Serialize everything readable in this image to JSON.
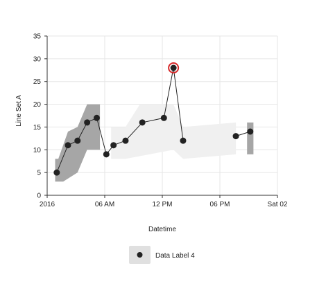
{
  "chart_data": {
    "type": "line",
    "ylabel": "Line Set A",
    "xlabel": "Datetime",
    "ylim": [
      0,
      35
    ],
    "yticks": [
      0,
      5,
      10,
      15,
      20,
      25,
      30,
      35
    ],
    "xlim": [
      "2016-01-01T00:00",
      "2016-01-02T00:00"
    ],
    "xticks": [
      {
        "x": "2016-01-01T00:00",
        "label": "2016"
      },
      {
        "x": "2016-01-01T06:00",
        "label": "06 AM"
      },
      {
        "x": "2016-01-01T12:00",
        "label": "12 PM"
      },
      {
        "x": "2016-01-01T18:00",
        "label": "06 PM"
      },
      {
        "x": "2016-01-02T00:00",
        "label": "Sat 02"
      }
    ],
    "grid": true,
    "legend_placement": "bottom-center",
    "series": [
      {
        "name": "Data Label 4",
        "color": "#222222",
        "highlight_color": "#d62728",
        "points": [
          {
            "x": "2016-01-01T01:00",
            "y": 5
          },
          {
            "x": "2016-01-01T02:10",
            "y": 11
          },
          {
            "x": "2016-01-01T03:10",
            "y": 12
          },
          {
            "x": "2016-01-01T04:10",
            "y": 16
          },
          {
            "x": "2016-01-01T05:10",
            "y": 17
          },
          {
            "x": "2016-01-01T06:10",
            "y": 9
          },
          {
            "x": "2016-01-01T06:55",
            "y": 11
          },
          {
            "x": "2016-01-01T08:10",
            "y": 12
          },
          {
            "x": "2016-01-01T09:55",
            "y": 16
          },
          {
            "x": "2016-01-01T12:10",
            "y": 17
          },
          {
            "x": "2016-01-01T13:10",
            "y": 28,
            "highlighted": true
          },
          {
            "x": "2016-01-01T14:10",
            "y": 12
          },
          {
            "x": "2016-01-01T19:40",
            "y": 13
          },
          {
            "x": "2016-01-01T21:10",
            "y": 14
          }
        ],
        "segments": [
          [
            0,
            11
          ],
          [
            12,
            13
          ]
        ]
      }
    ],
    "bands": [
      {
        "color": "#a6a6a6",
        "upper": [
          {
            "x": "2016-01-01T00:50",
            "y": 8
          },
          {
            "x": "2016-01-01T01:10",
            "y": 8
          },
          {
            "x": "2016-01-01T02:10",
            "y": 14
          },
          {
            "x": "2016-01-01T03:10",
            "y": 15
          },
          {
            "x": "2016-01-01T04:10",
            "y": 20
          },
          {
            "x": "2016-01-01T05:30",
            "y": 20
          }
        ],
        "lower": [
          {
            "x": "2016-01-01T05:30",
            "y": 10
          },
          {
            "x": "2016-01-01T04:10",
            "y": 10
          },
          {
            "x": "2016-01-01T03:10",
            "y": 5
          },
          {
            "x": "2016-01-01T01:40",
            "y": 3
          },
          {
            "x": "2016-01-01T00:50",
            "y": 3
          }
        ]
      },
      {
        "color": "#f0f0f0",
        "upper": [
          {
            "x": "2016-01-01T06:40",
            "y": 15
          },
          {
            "x": "2016-01-01T08:10",
            "y": 15
          },
          {
            "x": "2016-01-01T09:40",
            "y": 20
          },
          {
            "x": "2016-01-01T13:10",
            "y": 20
          },
          {
            "x": "2016-01-01T14:10",
            "y": 15
          },
          {
            "x": "2016-01-01T19:40",
            "y": 16
          }
        ],
        "lower": [
          {
            "x": "2016-01-01T19:40",
            "y": 9
          },
          {
            "x": "2016-01-01T14:10",
            "y": 8
          },
          {
            "x": "2016-01-01T13:10",
            "y": 10
          },
          {
            "x": "2016-01-01T08:10",
            "y": 8
          },
          {
            "x": "2016-01-01T06:40",
            "y": 8
          }
        ]
      },
      {
        "color": "#a6a6a6",
        "upper": [
          {
            "x": "2016-01-01T20:50",
            "y": 16
          },
          {
            "x": "2016-01-01T21:30",
            "y": 16
          }
        ],
        "lower": [
          {
            "x": "2016-01-01T21:30",
            "y": 9
          },
          {
            "x": "2016-01-01T20:50",
            "y": 9
          }
        ]
      }
    ]
  }
}
